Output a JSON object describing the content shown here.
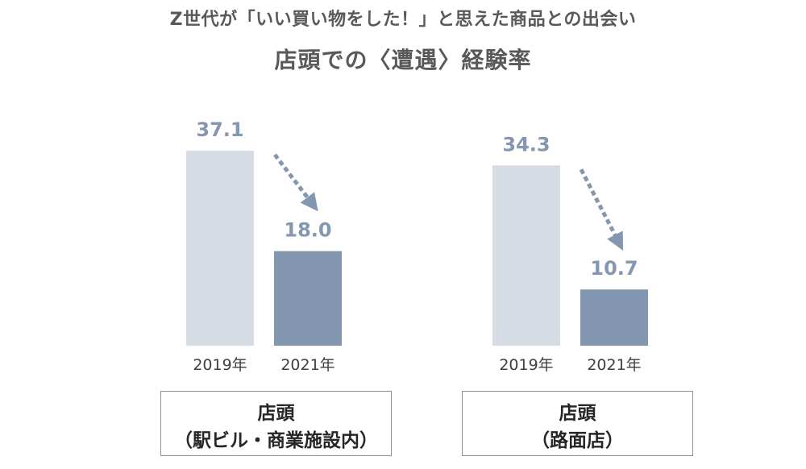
{
  "title_line1": "Z世代が「いい買い物をした！」と思えた商品との出会い",
  "title_line2": "店頭での〈遭遇〉経験率",
  "colors": {
    "bar_2019": "#d6dce4",
    "bar_2021": "#8497b0",
    "value_label": "#8497b0",
    "arrow": "#8497b0",
    "axis_text": "#404040"
  },
  "chart_data": [
    {
      "type": "bar",
      "group_label_lines": [
        "店頭",
        "（駅ビル・商業施設内）"
      ],
      "categories": [
        "2019年",
        "2021年"
      ],
      "values": [
        37.1,
        18.0
      ],
      "value_labels": [
        "37.1",
        "18.0"
      ],
      "ylim": [
        0,
        45
      ],
      "annotation": "dotted-down-arrow"
    },
    {
      "type": "bar",
      "group_label_lines": [
        "店頭",
        "（路面店）"
      ],
      "categories": [
        "2019年",
        "2021年"
      ],
      "values": [
        34.3,
        10.7
      ],
      "value_labels": [
        "34.3",
        "10.7"
      ],
      "ylim": [
        0,
        45
      ],
      "annotation": "dotted-down-arrow"
    }
  ]
}
